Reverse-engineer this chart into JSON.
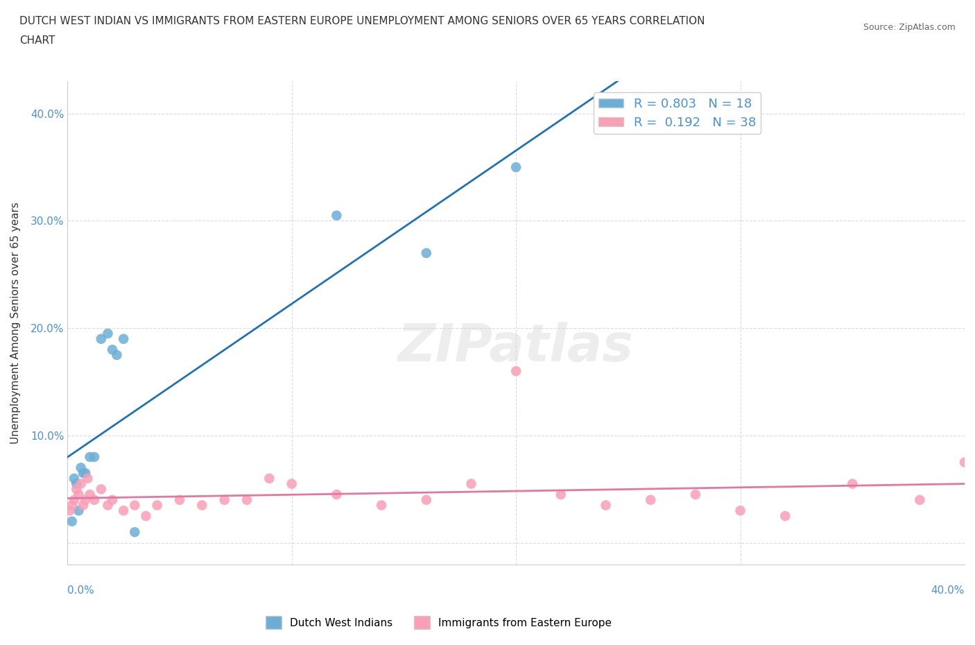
{
  "title_line1": "DUTCH WEST INDIAN VS IMMIGRANTS FROM EASTERN EUROPE UNEMPLOYMENT AMONG SENIORS OVER 65 YEARS CORRELATION",
  "title_line2": "CHART",
  "source": "Source: ZipAtlas.com",
  "ylabel": "Unemployment Among Seniors over 65 years",
  "ytick_values": [
    0.0,
    0.1,
    0.2,
    0.3,
    0.4
  ],
  "ytick_labels": [
    "",
    "10.0%",
    "20.0%",
    "30.0%",
    "40.0%"
  ],
  "xlim": [
    0.0,
    0.4
  ],
  "ylim": [
    -0.02,
    0.43
  ],
  "legend_r1": "R = 0.803   N = 18",
  "legend_r2": "R =  0.192   N = 38",
  "color_blue": "#6baed6",
  "color_pink": "#fa9fb5",
  "line_color_blue": "#2171b5",
  "line_color_pink": "#e377a0",
  "watermark": "ZIPatlas",
  "dutch_x": [
    0.002,
    0.003,
    0.004,
    0.005,
    0.006,
    0.007,
    0.008,
    0.01,
    0.012,
    0.015,
    0.018,
    0.02,
    0.022,
    0.025,
    0.03,
    0.12,
    0.16,
    0.2
  ],
  "dutch_y": [
    0.02,
    0.06,
    0.055,
    0.03,
    0.07,
    0.065,
    0.065,
    0.08,
    0.08,
    0.19,
    0.195,
    0.18,
    0.175,
    0.19,
    0.01,
    0.305,
    0.27,
    0.35
  ],
  "eastern_x": [
    0.001,
    0.002,
    0.003,
    0.004,
    0.005,
    0.006,
    0.007,
    0.008,
    0.009,
    0.01,
    0.012,
    0.015,
    0.018,
    0.02,
    0.025,
    0.03,
    0.035,
    0.04,
    0.05,
    0.06,
    0.07,
    0.08,
    0.09,
    0.1,
    0.12,
    0.14,
    0.16,
    0.18,
    0.2,
    0.22,
    0.24,
    0.26,
    0.28,
    0.3,
    0.32,
    0.35,
    0.38,
    0.4
  ],
  "eastern_y": [
    0.03,
    0.035,
    0.04,
    0.05,
    0.045,
    0.055,
    0.035,
    0.04,
    0.06,
    0.045,
    0.04,
    0.05,
    0.035,
    0.04,
    0.03,
    0.035,
    0.025,
    0.035,
    0.04,
    0.035,
    0.04,
    0.04,
    0.06,
    0.055,
    0.045,
    0.035,
    0.04,
    0.055,
    0.16,
    0.045,
    0.035,
    0.04,
    0.045,
    0.03,
    0.025,
    0.055,
    0.04,
    0.075
  ]
}
